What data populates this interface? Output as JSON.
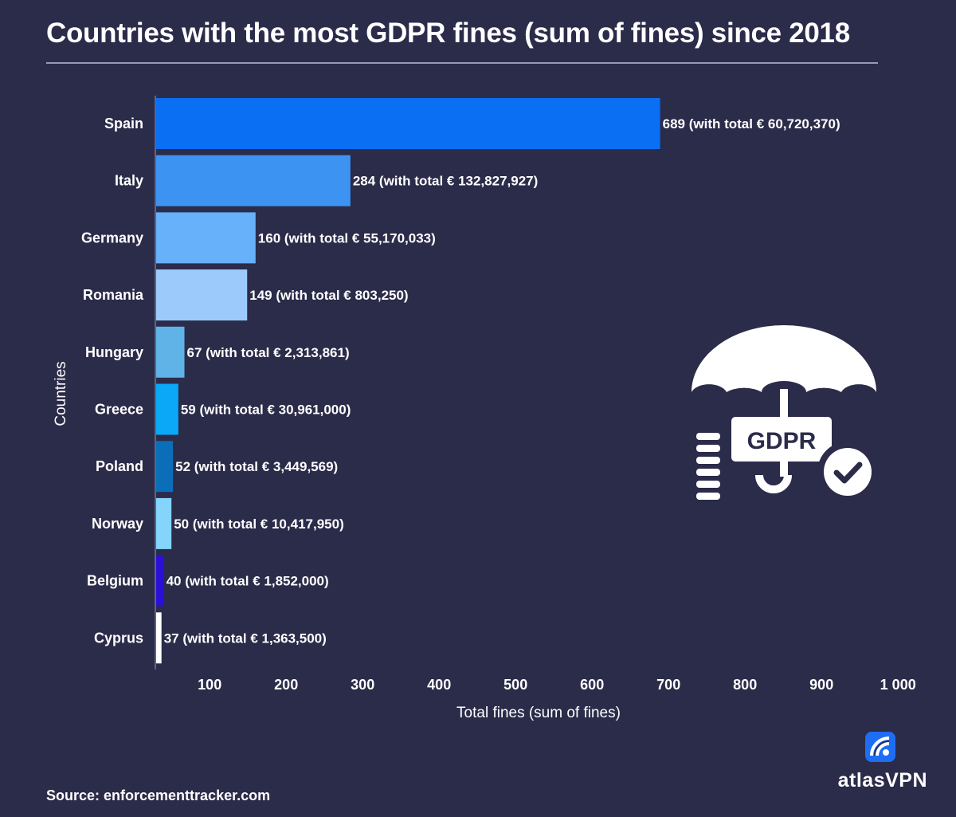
{
  "title": "Countries with the most GDPR fines (sum of fines) since 2018",
  "source": "Source: enforcementtracker.com",
  "brand": {
    "name": "atlasVPN",
    "logo_icon": "atlasvpn-logo-icon"
  },
  "illustration": {
    "icon": "umbrella-shield-icon",
    "label": "GDPR",
    "check_icon": "checkmark-circle-icon"
  },
  "colors": {
    "background": "#2b2b4a",
    "text": "#ffffff"
  },
  "chart_data": {
    "type": "bar",
    "orientation": "horizontal",
    "xlabel": "Total fines (sum of fines)",
    "ylabel": "Countries",
    "xlim": [
      30,
      1000
    ],
    "xticks": [
      100,
      200,
      300,
      400,
      500,
      600,
      700,
      800,
      900,
      1000
    ],
    "xtick_labels": [
      "100",
      "200",
      "300",
      "400",
      "500",
      "600",
      "700",
      "800",
      "900",
      "1 000"
    ],
    "grid": false,
    "categories": [
      "Spain",
      "Italy",
      "Germany",
      "Romania",
      "Hungary",
      "Greece",
      "Poland",
      "Norway",
      "Belgium",
      "Cyprus"
    ],
    "values": [
      689,
      284,
      160,
      149,
      67,
      59,
      52,
      50,
      40,
      37
    ],
    "data_labels": [
      "689 (with total € 60,720,370)",
      "284 (with total € 132,827,927)",
      "160 (with total € 55,170,033)",
      "149 (with total € 803,250)",
      "67 (with total € 2,313,861)",
      "59 (with total € 30,961,000)",
      "52 (with total € 3,449,569)",
      "50 (with total € 10,417,950)",
      "40 (with total € 1,852,000)",
      "37 (with total € 1,363,500)"
    ],
    "bar_colors": [
      "#0a6ff2",
      "#3d93f2",
      "#67b0fa",
      "#9ccbfb",
      "#5fb3e6",
      "#0aa8f7",
      "#0a6eb8",
      "#84d4fc",
      "#2b0fd6",
      "#ffffff"
    ]
  }
}
